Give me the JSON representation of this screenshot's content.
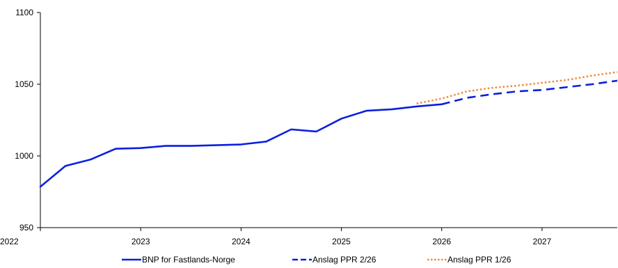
{
  "chart_data": {
    "type": "line",
    "title": "",
    "xlabel": "",
    "ylabel": "",
    "ylim": [
      950,
      1100
    ],
    "yticks": [
      950,
      1000,
      1050,
      1100
    ],
    "xlim": [
      2022,
      2027.75
    ],
    "xticks": [
      "2022",
      "2023",
      "2024",
      "2025",
      "2026",
      "2027"
    ],
    "grid": false,
    "legend_position": "bottom",
    "series": [
      {
        "name": "BNP for Fastlands-Norge",
        "style": "solid",
        "color": "#0a1fe0",
        "points": [
          [
            2022.0,
            978.5
          ],
          [
            2022.25,
            993.0
          ],
          [
            2022.5,
            997.5
          ],
          [
            2022.75,
            1005.0
          ],
          [
            2023.0,
            1005.5
          ],
          [
            2023.25,
            1007.0
          ],
          [
            2023.5,
            1007.0
          ],
          [
            2023.75,
            1007.5
          ],
          [
            2024.0,
            1008.0
          ],
          [
            2024.25,
            1010.0
          ],
          [
            2024.5,
            1018.5
          ],
          [
            2024.75,
            1017.0
          ],
          [
            2025.0,
            1026.0
          ],
          [
            2025.25,
            1031.5
          ],
          [
            2025.5,
            1032.5
          ],
          [
            2025.75,
            1034.5
          ],
          [
            2026.0,
            1036.0
          ]
        ]
      },
      {
        "name": "Anslag PPR 2/26",
        "style": "dashed",
        "color": "#0a1fe0",
        "points": [
          [
            2026.0,
            1036.0
          ],
          [
            2026.25,
            1040.5
          ],
          [
            2026.5,
            1043.0
          ],
          [
            2026.75,
            1045.0
          ],
          [
            2027.0,
            1046.0
          ],
          [
            2027.25,
            1048.0
          ],
          [
            2027.5,
            1050.0
          ],
          [
            2027.75,
            1052.5
          ]
        ]
      },
      {
        "name": "Anslag PPR 1/26",
        "style": "dotted",
        "color": "#ed8e3c",
        "points": [
          [
            2025.75,
            1036.5
          ],
          [
            2026.0,
            1040.0
          ],
          [
            2026.25,
            1045.0
          ],
          [
            2026.5,
            1047.5
          ],
          [
            2026.75,
            1049.0
          ],
          [
            2027.0,
            1051.0
          ],
          [
            2027.25,
            1053.0
          ],
          [
            2027.5,
            1056.0
          ],
          [
            2027.75,
            1058.5
          ]
        ]
      }
    ]
  }
}
